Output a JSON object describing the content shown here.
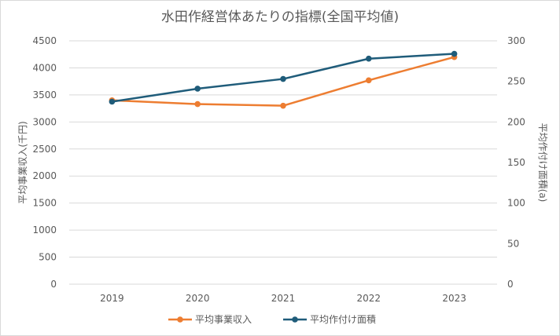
{
  "chart_data": {
    "type": "line",
    "title": "水田作経営体あたりの指標(全国平均値)",
    "x": [
      "2019",
      "2020",
      "2021",
      "2022",
      "2023"
    ],
    "y_left": {
      "label": "平均事業収入(千円)",
      "range": [
        0,
        4500
      ],
      "ticks": [
        "0",
        "500",
        "1000",
        "1500",
        "2000",
        "2500",
        "3000",
        "3500",
        "4000",
        "4500"
      ]
    },
    "y_right": {
      "label": "平均作付け面積(a)",
      "range": [
        0,
        300
      ],
      "ticks": [
        "0",
        "50",
        "100",
        "150",
        "200",
        "250",
        "300"
      ]
    },
    "series": [
      {
        "name": "平均事業収入",
        "axis": "left",
        "color": "#ED7D31",
        "values": [
          3400,
          3330,
          3300,
          3770,
          4200
        ]
      },
      {
        "name": "平均作付け面積",
        "axis": "right",
        "color": "#1F5C7A",
        "values": [
          225,
          241,
          253,
          278,
          284
        ]
      }
    ],
    "grid": true,
    "legend": "bottom"
  }
}
